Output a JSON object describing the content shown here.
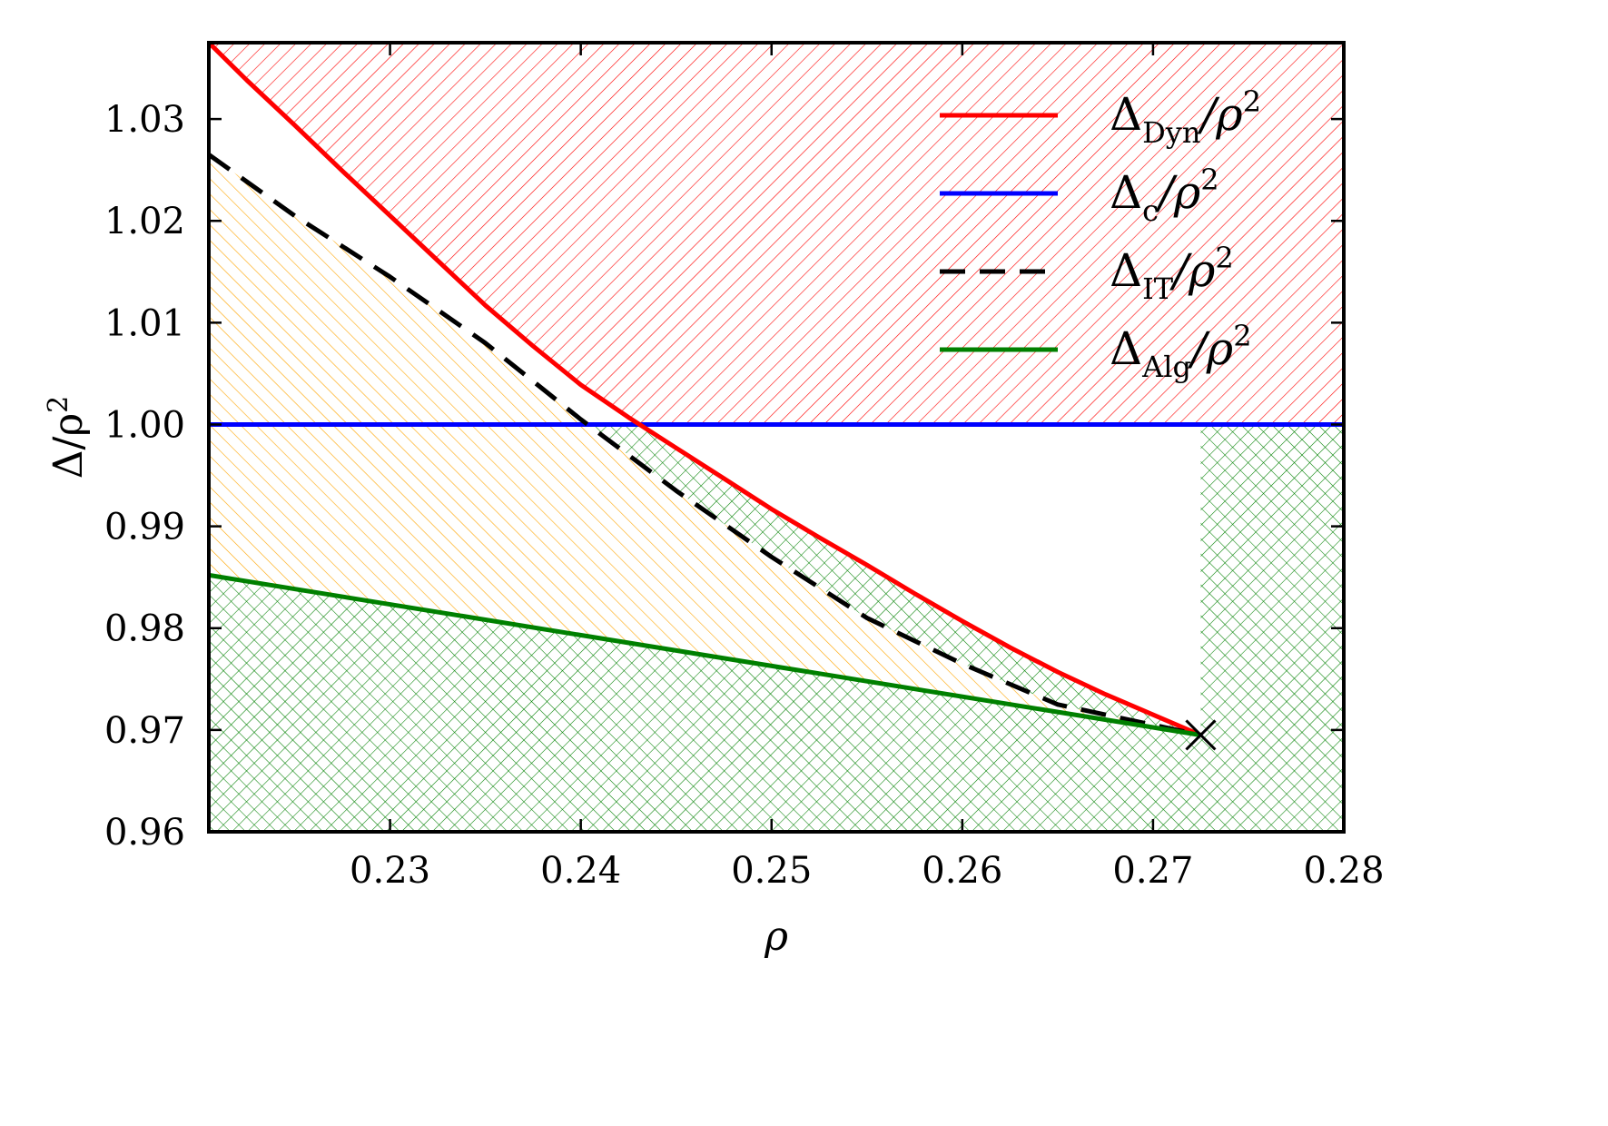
{
  "chart_data": {
    "type": "line",
    "title": "",
    "xlabel": "ρ",
    "ylabel": "Δ/ρ",
    "ylabel_sup": "2",
    "xlim": [
      0.2205,
      0.28
    ],
    "ylim": [
      0.96,
      1.0375
    ],
    "xticks": [
      0.23,
      0.24,
      0.25,
      0.26,
      0.27,
      0.28
    ],
    "xtick_labels": [
      "0.23",
      "0.24",
      "0.25",
      "0.26",
      "0.27",
      "0.28"
    ],
    "yticks": [
      0.96,
      0.97,
      0.98,
      0.99,
      1.0,
      1.01,
      1.02,
      1.03
    ],
    "ytick_labels": [
      "0.96",
      "0.97",
      "0.98",
      "0.99",
      "1.00",
      "1.01",
      "1.02",
      "1.03"
    ],
    "grid": false,
    "legend_position": "top-right",
    "series": [
      {
        "name": "Δ",
        "sub": "Dyn",
        "sup": "/ρ2",
        "color": "#ff0000",
        "dash": "solid",
        "points": [
          [
            0.2205,
            1.0375
          ],
          [
            0.2225,
            1.0338
          ],
          [
            0.225,
            1.0294
          ],
          [
            0.2275,
            1.0249
          ],
          [
            0.23,
            1.0205
          ],
          [
            0.2325,
            1.0161
          ],
          [
            0.235,
            1.0117
          ],
          [
            0.2375,
            1.0077
          ],
          [
            0.24,
            1.0039
          ],
          [
            0.2425,
            1.0007
          ],
          [
            0.245,
            0.9977
          ],
          [
            0.2475,
            0.9947
          ],
          [
            0.25,
            0.9917
          ],
          [
            0.2525,
            0.9889
          ],
          [
            0.255,
            0.9862
          ],
          [
            0.2575,
            0.9834
          ],
          [
            0.26,
            0.9807
          ],
          [
            0.2625,
            0.9781
          ],
          [
            0.265,
            0.9757
          ],
          [
            0.2675,
            0.9735
          ],
          [
            0.27,
            0.9715
          ],
          [
            0.2725,
            0.9695
          ]
        ]
      },
      {
        "name": "Δ",
        "sub": "c",
        "sup": "/ρ2",
        "color": "#0000ff",
        "dash": "solid",
        "points": [
          [
            0.2205,
            1.0
          ],
          [
            0.28,
            1.0
          ]
        ]
      },
      {
        "name": "Δ",
        "sub": "IT",
        "sup": "/ρ2",
        "color": "#000000",
        "dash": "dashed",
        "points": [
          [
            0.2205,
            1.0265
          ],
          [
            0.225,
            1.0205
          ],
          [
            0.23,
            1.0145
          ],
          [
            0.235,
            1.008
          ],
          [
            0.24,
            1.0005
          ],
          [
            0.245,
            0.9935
          ],
          [
            0.25,
            0.987
          ],
          [
            0.255,
            0.981
          ],
          [
            0.26,
            0.9765
          ],
          [
            0.265,
            0.9725
          ],
          [
            0.27,
            0.9705
          ],
          [
            0.2725,
            0.9695
          ]
        ]
      },
      {
        "name": "Δ",
        "sub": "Alg",
        "sup": "/ρ2",
        "color": "#008000",
        "dash": "solid",
        "points": [
          [
            0.2205,
            0.9852
          ],
          [
            0.2725,
            0.9695
          ]
        ]
      }
    ],
    "endpoint_marker": {
      "x": 0.2725,
      "y": 0.9695,
      "symbol": "x"
    },
    "regions": [
      {
        "fill": "red-hatch",
        "color": "#ff0000",
        "description": "above Dyn curve and above 1.00"
      },
      {
        "fill": "green-crosshatch",
        "color": "#008000",
        "description": "below Alg line, and between IT curve and 1.00"
      },
      {
        "fill": "orange-hatch",
        "color": "#ffa500",
        "description": "between Alg line and IT curve"
      }
    ]
  }
}
